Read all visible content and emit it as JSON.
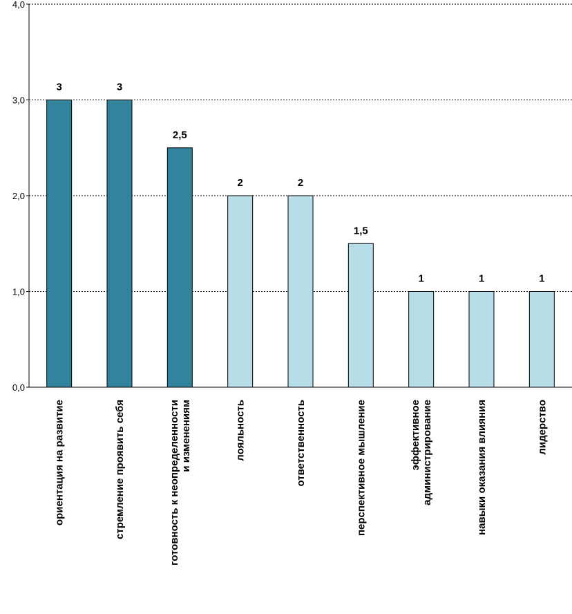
{
  "chart_data": {
    "type": "bar",
    "categories": [
      [
        "ориентация на развитие"
      ],
      [
        "стремление проявить себя"
      ],
      [
        "готовность к неопределенности",
        "и изменениям"
      ],
      [
        "лояльность"
      ],
      [
        "ответственность"
      ],
      [
        "перспективное мышление"
      ],
      [
        "эффективное",
        "администрирование"
      ],
      [
        "навыки оказания влияния"
      ],
      [
        "лидерство"
      ]
    ],
    "values": [
      3,
      3,
      2.5,
      2,
      2,
      1.5,
      1,
      1,
      1
    ],
    "data_labels": [
      "3",
      "3",
      "2,5",
      "2",
      "2",
      "1,5",
      "1",
      "1",
      "1"
    ],
    "bar_color_group": [
      "dark",
      "dark",
      "dark",
      "light",
      "light",
      "light",
      "light",
      "light",
      "light"
    ],
    "colors": {
      "dark": "#31849b",
      "light": "#b7dde8",
      "outline": "#000000",
      "grid": "#000000"
    },
    "ylim": [
      0,
      4
    ],
    "yticks": [
      0,
      1,
      2,
      3,
      4
    ],
    "ytick_labels": [
      "0,0",
      "1,0",
      "2,0",
      "3,0",
      "4,0"
    ],
    "grid": "horizontal dashed",
    "title": "",
    "xlabel": "",
    "ylabel": ""
  }
}
